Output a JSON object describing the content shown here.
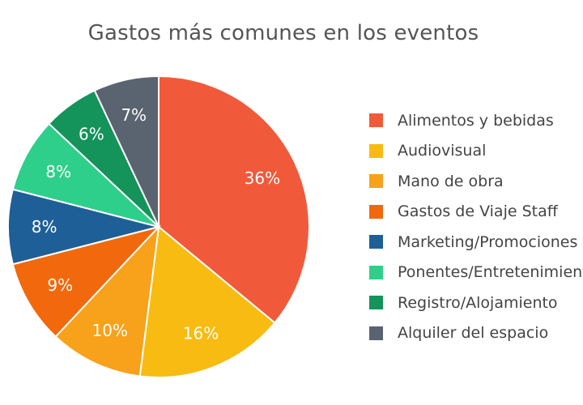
{
  "chart_data": {
    "type": "pie",
    "title": "Gastos más comunes en los eventos",
    "legend_position": "right",
    "slices": [
      {
        "name": "Alimentos y bebidas",
        "value": 36,
        "label": "36%",
        "color": "#f05a3a"
      },
      {
        "name": "Audiovisual",
        "value": 16,
        "label": "16%",
        "color": "#f8bb11"
      },
      {
        "name": "Mano de obra",
        "value": 10,
        "label": "10%",
        "color": "#f8a11a"
      },
      {
        "name": "Gastos de Viaje  Staff",
        "value": 9,
        "label": "9%",
        "color": "#f2680c"
      },
      {
        "name": "Marketing/Promociones",
        "value": 8,
        "label": "8%",
        "color": "#1e5f97"
      },
      {
        "name": "Ponentes/Entretenimiento",
        "value": 8,
        "label": "8%",
        "color": "#2ecf8a"
      },
      {
        "name": "Registro/Alojamiento",
        "value": 6,
        "label": "6%",
        "color": "#14935a"
      },
      {
        "name": "Alquiler del espacio",
        "value": 7,
        "label": "7%",
        "color": "#5a6470"
      }
    ]
  }
}
